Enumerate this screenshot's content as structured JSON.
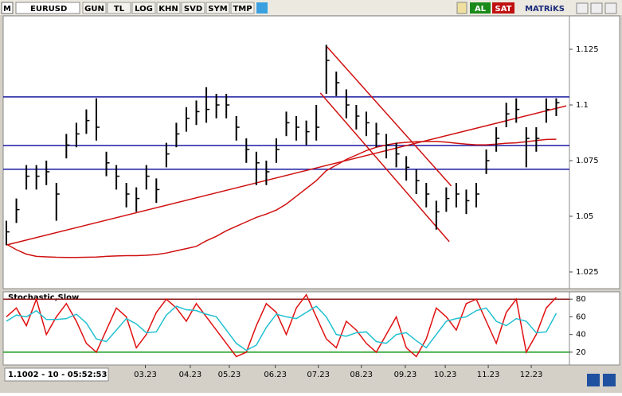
{
  "toolbar": {
    "logo": "M",
    "symbol": "EURUSD",
    "buttons": [
      "GUN",
      "TL",
      "LOG",
      "KHN",
      "SVD",
      "SYM",
      "TMP"
    ],
    "buy": "AL",
    "sell": "SAT",
    "brand": "MATRiKS"
  },
  "status": "1.1002 - 10 - 05:52:53",
  "chart_data": [
    {
      "type": "ohlc",
      "color": "#000000",
      "x": [
        0,
        1,
        2,
        3,
        4,
        5,
        6,
        7,
        8,
        9,
        10,
        11,
        12,
        13,
        14,
        15,
        16,
        17,
        18,
        19,
        20,
        21,
        22,
        23,
        24,
        25,
        26,
        27,
        28,
        29,
        30,
        31,
        32,
        33,
        34,
        35,
        36,
        37,
        38,
        39,
        40,
        41,
        42,
        43,
        44,
        45,
        46,
        47,
        48,
        49,
        50,
        51,
        52,
        53,
        54,
        55
      ],
      "high": [
        1.048,
        1.058,
        1.073,
        1.073,
        1.075,
        1.065,
        1.087,
        1.092,
        1.098,
        1.103,
        1.079,
        1.073,
        1.065,
        1.063,
        1.073,
        1.067,
        1.083,
        1.092,
        1.099,
        1.102,
        1.108,
        1.105,
        1.105,
        1.095,
        1.085,
        1.079,
        1.075,
        1.085,
        1.097,
        1.095,
        1.093,
        1.1,
        1.127,
        1.115,
        1.107,
        1.1,
        1.097,
        1.092,
        1.087,
        1.083,
        1.077,
        1.071,
        1.065,
        1.057,
        1.063,
        1.065,
        1.062,
        1.065,
        1.08,
        1.09,
        1.101,
        1.103,
        1.09,
        1.09,
        1.103,
        1.103
      ],
      "low": [
        1.037,
        1.047,
        1.062,
        1.062,
        1.064,
        1.048,
        1.076,
        1.081,
        1.087,
        1.084,
        1.068,
        1.062,
        1.054,
        1.052,
        1.062,
        1.056,
        1.072,
        1.081,
        1.088,
        1.091,
        1.092,
        1.094,
        1.094,
        1.084,
        1.074,
        1.064,
        1.064,
        1.074,
        1.086,
        1.084,
        1.082,
        1.084,
        1.105,
        1.104,
        1.094,
        1.089,
        1.086,
        1.081,
        1.076,
        1.072,
        1.066,
        1.06,
        1.054,
        1.044,
        1.052,
        1.054,
        1.051,
        1.054,
        1.069,
        1.079,
        1.09,
        1.092,
        1.072,
        1.079,
        1.092,
        1.095
      ],
      "close": [
        1.043,
        1.053,
        1.068,
        1.068,
        1.07,
        1.06,
        1.082,
        1.087,
        1.093,
        1.09,
        1.074,
        1.068,
        1.06,
        1.058,
        1.068,
        1.062,
        1.078,
        1.087,
        1.094,
        1.097,
        1.098,
        1.1,
        1.1,
        1.09,
        1.08,
        1.074,
        1.07,
        1.08,
        1.092,
        1.09,
        1.088,
        1.09,
        1.12,
        1.11,
        1.1,
        1.095,
        1.092,
        1.087,
        1.082,
        1.078,
        1.072,
        1.066,
        1.06,
        1.052,
        1.058,
        1.06,
        1.057,
        1.06,
        1.075,
        1.085,
        1.096,
        1.098,
        1.085,
        1.085,
        1.098,
        1.101
      ],
      "moving_average": {
        "color": "#d01010",
        "values": [
          1.0375,
          1.035,
          1.033,
          1.032,
          1.0318,
          1.0316,
          1.0315,
          1.0315,
          1.0316,
          1.0317,
          1.032,
          1.0322,
          1.0323,
          1.0323,
          1.0325,
          1.0328,
          1.0335,
          1.0345,
          1.0355,
          1.0365,
          1.039,
          1.041,
          1.0435,
          1.0455,
          1.0475,
          1.0495,
          1.051,
          1.0528,
          1.0555,
          1.059,
          1.0625,
          1.066,
          1.0705,
          1.073,
          1.0755,
          1.0775,
          1.0795,
          1.081,
          1.082,
          1.0828,
          1.0832,
          1.0835,
          1.0836,
          1.0836,
          1.0833,
          1.0828,
          1.0824,
          1.0821,
          1.0821,
          1.0824,
          1.0828,
          1.083,
          1.0835,
          1.084,
          1.0845,
          1.0846
        ]
      },
      "hlines": {
        "color": "#1a1aa0",
        "values": [
          1.1036,
          1.0818,
          1.0711
        ]
      },
      "trend_lines": [
        {
          "color": "#d01010",
          "x": [
            0,
            56
          ],
          "y": [
            1.0371,
            1.0996
          ]
        },
        {
          "color": "#d01010",
          "x": [
            32.07,
            44.5
          ],
          "y": [
            1.1261,
            1.0636
          ]
        },
        {
          "color": "#d01010",
          "x": [
            31.4,
            44.3
          ],
          "y": [
            1.1054,
            1.0386
          ]
        }
      ],
      "xlim": [
        0,
        56
      ],
      "ylim": [
        1.0175,
        1.14
      ],
      "yticks": [
        1.125,
        1.1,
        1.075,
        1.05,
        1.025
      ]
    },
    {
      "type": "line",
      "title": "Stochastic,Slow",
      "xlim": [
        0,
        56
      ],
      "ylim": [
        5.5,
        88.3
      ],
      "yticks": [
        80,
        60,
        40,
        20
      ],
      "levels": [
        {
          "value": 80,
          "color": "#8b1a1a"
        },
        {
          "value": 20,
          "color": "#1a9a1a"
        }
      ],
      "x": [
        0,
        1,
        2,
        3,
        4,
        5,
        6,
        7,
        8,
        9,
        10,
        11,
        12,
        13,
        14,
        15,
        16,
        17,
        18,
        19,
        20,
        21,
        22,
        23,
        24,
        25,
        26,
        27,
        28,
        29,
        30,
        31,
        32,
        33,
        34,
        35,
        36,
        37,
        38,
        39,
        40,
        41,
        42,
        43,
        44,
        45,
        46,
        47,
        48,
        49,
        50,
        51,
        52,
        53,
        54,
        55
      ],
      "series": [
        {
          "color": "#e01010",
          "values": [
            60,
            70,
            50,
            80,
            40,
            60,
            75,
            55,
            30,
            20,
            45,
            70,
            60,
            25,
            40,
            65,
            80,
            70,
            55,
            75,
            60,
            45,
            30,
            15,
            20,
            50,
            75,
            65,
            40,
            70,
            85,
            60,
            35,
            25,
            55,
            45,
            30,
            20,
            40,
            60,
            25,
            15,
            35,
            70,
            60,
            45,
            75,
            80,
            55,
            30,
            65,
            80,
            20,
            40,
            70,
            82
          ]
        },
        {
          "color": "#20c0d0",
          "values": [
            55,
            62,
            60,
            67,
            57,
            57,
            58,
            63,
            53,
            35,
            32,
            45,
            58,
            52,
            42,
            43,
            62,
            72,
            68,
            67,
            63,
            60,
            45,
            30,
            22,
            28,
            48,
            63,
            60,
            58,
            65,
            72,
            60,
            40,
            38,
            42,
            43,
            32,
            30,
            40,
            42,
            33,
            25,
            40,
            55,
            58,
            60,
            67,
            70,
            55,
            50,
            58,
            55,
            42,
            43,
            64
          ]
        }
      ],
      "xticks": [
        {
          "value": 13.9,
          "label": "03.23"
        },
        {
          "value": 18.4,
          "label": "04.23"
        },
        {
          "value": 22.3,
          "label": "05.23"
        },
        {
          "value": 26.9,
          "label": "06.23"
        },
        {
          "value": 31.2,
          "label": "07.23"
        },
        {
          "value": 35.5,
          "label": "08.23"
        },
        {
          "value": 39.9,
          "label": "09.23"
        },
        {
          "value": 43.9,
          "label": "10.23"
        },
        {
          "value": 48.2,
          "label": "11.23"
        },
        {
          "value": 52.5,
          "label": "12.23"
        }
      ]
    }
  ]
}
